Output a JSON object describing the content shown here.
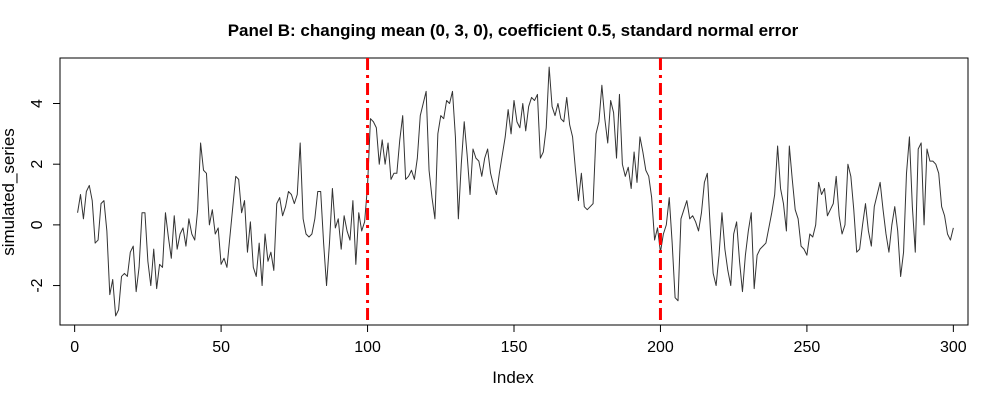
{
  "chart_data": {
    "type": "line",
    "title": "Panel B: changing mean (0, 3, 0), coefficient 0.5, standard normal error",
    "xlabel": "Index",
    "ylabel": "simulated_series",
    "xlim": [
      -5,
      305
    ],
    "ylim": [
      -3.3,
      5.5
    ],
    "x_ticks": [
      0,
      50,
      100,
      150,
      200,
      250,
      300
    ],
    "y_ticks": [
      -2,
      0,
      2,
      4
    ],
    "x_tick_labels": [
      "0",
      "50",
      "100",
      "150",
      "200",
      "250",
      "300"
    ],
    "y_tick_labels": [
      "-2",
      "0",
      "2",
      "4"
    ],
    "grid": false,
    "series": [
      {
        "color": "#333333",
        "x_start": 1,
        "values": [
          0.4,
          1.0,
          0.2,
          1.1,
          1.3,
          0.8,
          -0.6,
          -0.5,
          0.7,
          0.8,
          -0.2,
          -2.3,
          -1.8,
          -3.0,
          -2.8,
          -1.7,
          -1.6,
          -1.7,
          -0.9,
          -0.7,
          -2.2,
          -1.4,
          0.4,
          0.4,
          -1.2,
          -2.0,
          -0.8,
          -2.1,
          -1.3,
          -1.4,
          0.4,
          -0.4,
          -1.1,
          0.3,
          -0.8,
          -0.3,
          -0.1,
          -0.7,
          0.2,
          -0.3,
          -0.5,
          0.5,
          2.7,
          1.8,
          1.7,
          0.0,
          0.5,
          -0.3,
          -0.1,
          -1.3,
          -1.1,
          -1.4,
          -0.4,
          0.6,
          1.6,
          1.5,
          0.4,
          0.8,
          -0.9,
          0.1,
          -1.4,
          -1.7,
          -0.6,
          -2.0,
          -0.3,
          -1.2,
          -0.9,
          -1.5,
          0.7,
          0.9,
          0.3,
          0.6,
          1.1,
          1.0,
          0.7,
          1.0,
          2.7,
          0.2,
          -0.3,
          -0.4,
          -0.3,
          0.2,
          1.1,
          1.1,
          -0.6,
          -2.0,
          -0.6,
          1.2,
          -0.1,
          0.2,
          -0.8,
          0.3,
          -0.2,
          -0.5,
          0.8,
          -1.3,
          0.4,
          -0.2,
          0.1,
          1.3,
          3.5,
          3.4,
          3.2,
          2.0,
          2.8,
          2.0,
          2.7,
          1.5,
          1.7,
          1.7,
          2.8,
          3.6,
          1.5,
          1.6,
          1.8,
          1.5,
          2.2,
          3.6,
          4.0,
          4.4,
          1.8,
          0.9,
          0.2,
          3.0,
          3.6,
          3.5,
          4.1,
          4.0,
          4.4,
          2.9,
          0.2,
          2.0,
          3.4,
          2.3,
          1.0,
          2.5,
          2.2,
          2.1,
          1.6,
          2.2,
          2.5,
          1.7,
          1.3,
          1.0,
          1.7,
          2.3,
          2.9,
          3.8,
          3.0,
          4.1,
          3.4,
          3.2,
          4.0,
          3.1,
          3.9,
          4.2,
          4.1,
          4.3,
          2.2,
          2.4,
          3.2,
          5.2,
          3.9,
          3.6,
          4.0,
          3.5,
          3.4,
          4.2,
          3.3,
          2.9,
          1.8,
          0.8,
          1.7,
          0.6,
          0.5,
          0.6,
          0.7,
          3.0,
          3.4,
          4.6,
          3.5,
          2.7,
          4.1,
          3.7,
          2.2,
          4.3,
          2.0,
          1.6,
          1.9,
          1.2,
          2.4,
          1.4,
          2.9,
          2.4,
          1.8,
          1.6,
          0.9,
          -0.5,
          -0.1,
          -0.9,
          -0.3,
          0.0,
          0.9,
          -0.6,
          -2.4,
          -2.5,
          0.2,
          0.5,
          0.8,
          0.2,
          0.3,
          0.1,
          -0.2,
          0.4,
          1.4,
          1.7,
          -0.1,
          -1.6,
          -2.0,
          -1.0,
          0.4,
          -0.8,
          -1.5,
          -2.0,
          -0.3,
          0.1,
          -1.2,
          -2.2,
          -1.0,
          -0.2,
          0.4,
          -2.1,
          -1.0,
          -0.8,
          -0.7,
          -0.6,
          -0.1,
          0.4,
          1.0,
          2.6,
          1.2,
          0.7,
          -0.2,
          2.6,
          1.5,
          0.5,
          0.2,
          -0.7,
          -0.8,
          -1.0,
          -0.3,
          -0.4,
          0.0,
          1.4,
          1.0,
          1.2,
          0.3,
          0.5,
          0.7,
          1.6,
          0.3,
          -0.3,
          0.0,
          2.0,
          1.6,
          0.5,
          -0.9,
          -0.8,
          0.0,
          0.7,
          -0.2,
          -0.7,
          0.6,
          1.0,
          1.4,
          0.5,
          -0.3,
          -0.9,
          0.0,
          0.6,
          -0.2,
          -1.7,
          -0.9,
          1.7,
          2.9,
          0.6,
          -0.9,
          2.5,
          2.7,
          0.0,
          2.5,
          2.1,
          2.1,
          2.0,
          1.7,
          0.6,
          0.3,
          -0.3,
          -0.5,
          -0.1
        ]
      }
    ],
    "vlines": [
      {
        "x": 100,
        "color": "#ff0000",
        "style": "dashdot"
      },
      {
        "x": 200,
        "color": "#ff0000",
        "style": "dashdot"
      }
    ]
  }
}
